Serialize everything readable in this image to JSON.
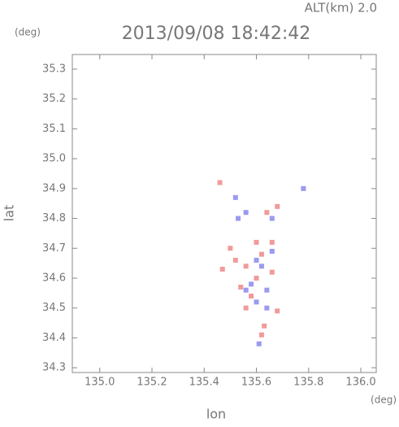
{
  "chart_data": {
    "type": "scatter",
    "title": "2013/09/08 18:42:42",
    "subtitle": "ALT(km) 2.0",
    "y_unit": "(deg)",
    "x_unit": "(deg)",
    "ylabel": "lat",
    "xlabel": "lon",
    "xlim": [
      134.895,
      136.059
    ],
    "ylim": [
      34.284,
      35.349
    ],
    "xticks": [
      {
        "value": 135.0,
        "label": "135.0"
      },
      135.2,
      135.4,
      135.6,
      135.8,
      {
        "value": 136.0,
        "label": "136.0"
      }
    ],
    "yticks": [
      34.3,
      34.4,
      34.5,
      34.6,
      34.7,
      34.8,
      34.9,
      {
        "value": 35.0,
        "label": "35.0"
      },
      35.1,
      35.2,
      35.3
    ],
    "series": [
      {
        "color": "#ee8888",
        "x": [
          135.46,
          135.64,
          135.68,
          135.5,
          135.52,
          135.56,
          135.62,
          135.6,
          135.58,
          135.66,
          135.68,
          135.63,
          135.62,
          135.54,
          135.47,
          135.6,
          135.66,
          135.56
        ],
        "y": [
          34.92,
          34.82,
          34.84,
          34.7,
          34.66,
          34.64,
          34.68,
          34.6,
          34.54,
          34.62,
          34.49,
          34.44,
          34.41,
          34.57,
          34.63,
          34.72,
          34.72,
          34.5
        ]
      },
      {
        "color": "#8888ee",
        "x": [
          135.52,
          135.78,
          135.66,
          135.56,
          135.6,
          135.58,
          135.62,
          135.56,
          135.6,
          135.64,
          135.66,
          135.61,
          135.53,
          135.64
        ],
        "y": [
          34.87,
          34.9,
          34.8,
          34.82,
          34.66,
          34.58,
          34.64,
          34.56,
          34.52,
          34.56,
          34.69,
          34.38,
          34.8,
          34.5
        ]
      }
    ]
  }
}
